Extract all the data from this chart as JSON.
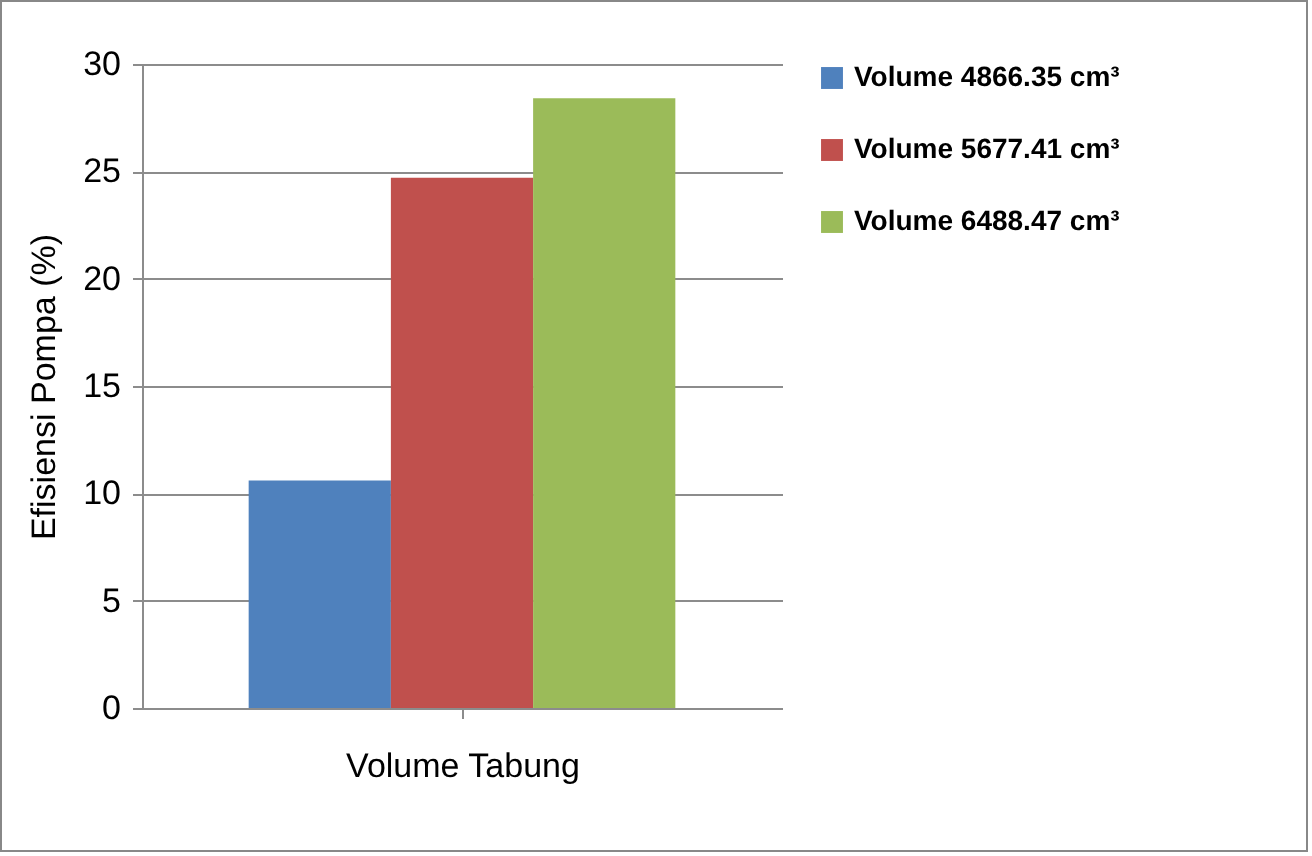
{
  "chart_data": {
    "type": "bar",
    "xlabel": "Volume Tabung",
    "ylabel": "Efisiensi Pompa (%)",
    "categories": [
      null
    ],
    "series": [
      {
        "name": "Volume 4866.35 cm³",
        "color": "#4f81bd",
        "values": [
          10.6
        ]
      },
      {
        "name": "Volume 5677.41 cm³",
        "color": "#c0504d",
        "values": [
          24.7
        ]
      },
      {
        "name": "Volume 6488.47 cm³",
        "color": "#9bbb59",
        "values": [
          28.4
        ]
      }
    ],
    "ylim": [
      0,
      30
    ],
    "yticks": [
      0,
      5,
      10,
      15,
      20,
      25,
      30
    ],
    "grid": "y",
    "legend": "right"
  }
}
